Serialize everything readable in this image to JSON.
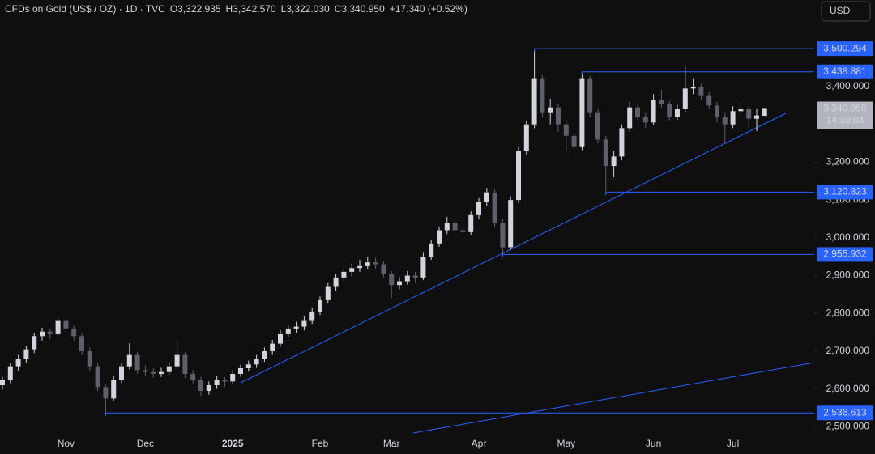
{
  "header": {
    "symbol": "CFDs on Gold (US$ / OZ) · 1D · TVC",
    "ohlc": [
      {
        "key": "O",
        "label": "3,322.935"
      },
      {
        "key": "H",
        "label": "3,342.570"
      },
      {
        "key": "L",
        "label": "3,322.030"
      },
      {
        "key": "C",
        "label": "3,340.950"
      }
    ],
    "change": "+17.340 (+0.52%)",
    "currency": "USD"
  },
  "chart_data": {
    "type": "candlestick",
    "categories": [
      null,
      null,
      null,
      null,
      null,
      null,
      null,
      null,
      "Nov",
      null,
      null,
      null,
      null,
      null,
      null,
      null,
      null,
      null,
      "Dec",
      null,
      null,
      null,
      null,
      null,
      null,
      null,
      null,
      null,
      null,
      "2025",
      null,
      null,
      null,
      null,
      null,
      null,
      null,
      null,
      null,
      null,
      "Feb",
      null,
      null,
      null,
      null,
      null,
      null,
      null,
      null,
      "Mar",
      null,
      null,
      null,
      null,
      null,
      null,
      null,
      null,
      null,
      null,
      "Apr",
      null,
      null,
      null,
      null,
      null,
      null,
      null,
      null,
      null,
      null,
      "May",
      null,
      null,
      null,
      null,
      null,
      null,
      null,
      null,
      null,
      null,
      "Jun",
      null,
      null,
      null,
      null,
      null,
      null,
      null,
      null,
      null,
      "Jul",
      null,
      null,
      null,
      null
    ],
    "open": [
      2610,
      2625,
      2660,
      2680,
      2705,
      2740,
      2752,
      2745,
      2780,
      2760,
      2740,
      2700,
      2660,
      2605,
      2575,
      2625,
      2660,
      2690,
      2650,
      2645,
      2640,
      2645,
      2660,
      2690,
      2640,
      2625,
      2595,
      2610,
      2625,
      2620,
      2640,
      2655,
      2665,
      2680,
      2700,
      2720,
      2745,
      2760,
      2765,
      2780,
      2805,
      2835,
      2870,
      2895,
      2910,
      2920,
      2925,
      2935,
      2930,
      2905,
      2875,
      2885,
      2900,
      2895,
      2950,
      2985,
      3020,
      3040,
      3020,
      3015,
      3060,
      3095,
      3120,
      3040,
      2975,
      3100,
      3230,
      3300,
      3420,
      3330,
      3345,
      3300,
      3270,
      3240,
      3420,
      3330,
      3260,
      3190,
      3215,
      3290,
      3345,
      3320,
      3305,
      3365,
      3355,
      3320,
      3340,
      3395,
      3400,
      3375,
      3350,
      3320,
      3300,
      3335,
      3340,
      3315,
      3322.935
    ],
    "high": [
      2632,
      2668,
      2690,
      2714,
      2748,
      2762,
      2760,
      2790,
      2788,
      2768,
      2748,
      2710,
      2668,
      2612,
      2635,
      2670,
      2721,
      2698,
      2662,
      2655,
      2656,
      2672,
      2725,
      2698,
      2650,
      2632,
      2620,
      2635,
      2632,
      2650,
      2664,
      2675,
      2690,
      2710,
      2730,
      2756,
      2770,
      2778,
      2792,
      2815,
      2845,
      2880,
      2905,
      2922,
      2932,
      2942,
      2950,
      2948,
      2938,
      2912,
      2896,
      2912,
      2910,
      2960,
      2995,
      3030,
      3055,
      3050,
      3028,
      3070,
      3105,
      3132,
      3128,
      3050,
      3110,
      3240,
      3310,
      3500.294,
      3430,
      3368,
      3355,
      3312,
      3280,
      3438.881,
      3428,
      3340,
      3270,
      3230,
      3300,
      3360,
      3355,
      3330,
      3380,
      3392,
      3362,
      3352,
      3452,
      3420,
      3408,
      3385,
      3360,
      3330,
      3348,
      3360,
      3348,
      3340,
      3342.57
    ],
    "low": [
      2598,
      2615,
      2648,
      2670,
      2695,
      2728,
      2732,
      2738,
      2750,
      2728,
      2690,
      2648,
      2595,
      2536.613,
      2568,
      2615,
      2652,
      2640,
      2636,
      2630,
      2632,
      2638,
      2652,
      2630,
      2615,
      2582,
      2585,
      2600,
      2605,
      2612,
      2632,
      2646,
      2656,
      2672,
      2690,
      2712,
      2736,
      2748,
      2755,
      2772,
      2796,
      2826,
      2860,
      2884,
      2898,
      2910,
      2916,
      2918,
      2895,
      2840,
      2864,
      2876,
      2880,
      2888,
      2942,
      2976,
      3010,
      3010,
      3005,
      3008,
      3050,
      3085,
      3030,
      2955.932,
      2968,
      3092,
      3220,
      3290,
      3320,
      3300,
      3280,
      3230,
      3210,
      3232,
      3320,
      3250,
      3120.823,
      3160,
      3205,
      3280,
      3310,
      3290,
      3298,
      3345,
      3310,
      3312,
      3332,
      3380,
      3365,
      3340,
      3305,
      3250,
      3290,
      3325,
      3290,
      3282,
      3322.03
    ],
    "close": [
      2625,
      2660,
      2680,
      2705,
      2740,
      2752,
      2745,
      2780,
      2760,
      2740,
      2700,
      2660,
      2605,
      2575,
      2625,
      2660,
      2690,
      2650,
      2645,
      2640,
      2645,
      2660,
      2690,
      2640,
      2625,
      2595,
      2610,
      2625,
      2620,
      2640,
      2655,
      2665,
      2680,
      2700,
      2720,
      2745,
      2760,
      2765,
      2780,
      2805,
      2835,
      2870,
      2895,
      2910,
      2920,
      2925,
      2935,
      2930,
      2905,
      2875,
      2885,
      2900,
      2895,
      2950,
      2985,
      3020,
      3040,
      3020,
      3015,
      3060,
      3095,
      3120,
      3040,
      2975,
      3100,
      3230,
      3300,
      3420,
      3330,
      3345,
      3300,
      3270,
      3240,
      3420,
      3330,
      3260,
      3190,
      3215,
      3290,
      3345,
      3320,
      3305,
      3365,
      3355,
      3320,
      3340,
      3395,
      3400,
      3375,
      3350,
      3320,
      3300,
      3335,
      3340,
      3315,
      3323.61,
      3340.95
    ],
    "up_color": "#d1d4dc",
    "down_color": "#5d606b",
    "level_color": "#2962ff",
    "ylim": [
      2473,
      3629
    ],
    "yticks": [
      {
        "value": 2500,
        "label": "2,500.000"
      },
      {
        "value": 2600,
        "label": "2,600.000"
      },
      {
        "value": 2700,
        "label": "2,700.000"
      },
      {
        "value": 2800,
        "label": "2,800.000"
      },
      {
        "value": 2900,
        "label": "2,900.000"
      },
      {
        "value": 3000,
        "label": "3,000.000"
      },
      {
        "value": 3100,
        "label": "3,100.000"
      },
      {
        "value": 3200,
        "label": "3,200.000"
      },
      {
        "value": 3400,
        "label": "3,400.000"
      }
    ],
    "levels": [
      {
        "value": 3500.294,
        "label": "3,500.294"
      },
      {
        "value": 3438.881,
        "label": "3,438.881"
      },
      {
        "value": 3120.823,
        "label": "3,120.823"
      },
      {
        "value": 2955.932,
        "label": "2,955.932"
      },
      {
        "value": 2536.613,
        "label": "2,536.613"
      }
    ],
    "last_price": {
      "value": 3340.95,
      "label": "3,340.950"
    },
    "countdown": "14:39:04"
  }
}
